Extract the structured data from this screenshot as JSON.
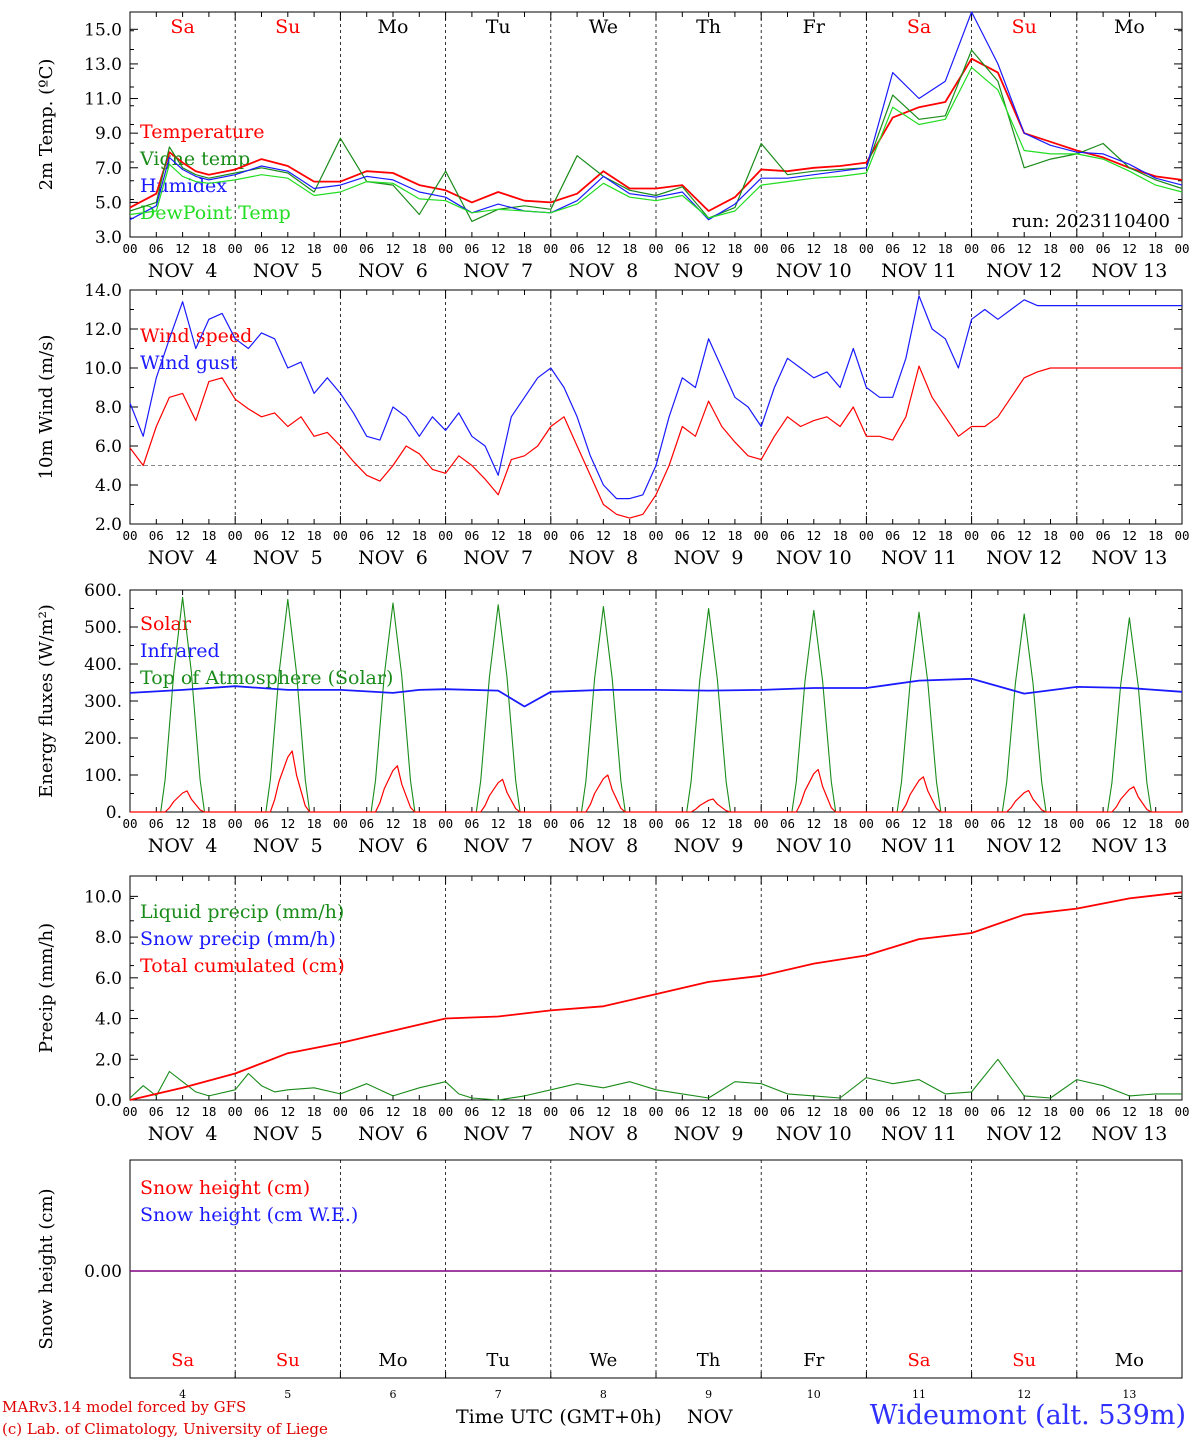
{
  "days": [
    "Sa",
    "Su",
    "Mo",
    "Tu",
    "We",
    "Th",
    "Fr",
    "Sa",
    "Su",
    "Mo"
  ],
  "weekend_flags": [
    true,
    true,
    false,
    false,
    false,
    false,
    false,
    true,
    true,
    false
  ],
  "date_labels": [
    "NOV  4",
    "NOV  5",
    "NOV  6",
    "NOV  7",
    "NOV  8",
    "NOV  9",
    "NOV 10",
    "NOV 11",
    "NOV 12",
    "NOV 13"
  ],
  "hour_ticks": [
    "00",
    "06",
    "12",
    "18"
  ],
  "hour_end": "00",
  "bottom_day_numbers": [
    "4",
    "5",
    "6",
    "7",
    "8",
    "9",
    "10",
    "11",
    "12",
    "13"
  ],
  "bottom_month": "NOV",
  "footer": {
    "model_line": "MARv3.14 model forced by GFS",
    "copyright_line": "(c) Lab. of Climatology, University of Liege",
    "time_label": "Time UTC (GMT+0h)",
    "station": "Wideumont (alt. 539m)"
  },
  "colors": {
    "red": "#ff0000",
    "green": "#1a8c1a",
    "blue": "#1a1aff",
    "lightgreen": "#22dd22",
    "purple": "#800080",
    "weekend": "#ff0000",
    "weekday": "#000000"
  },
  "chart_data": [
    {
      "type": "line",
      "id": "temperature",
      "ylabel": "2m Temp. (ºC)",
      "ylim": [
        3.0,
        16.0
      ],
      "yticks": [
        "3.0",
        "5.0",
        "7.0",
        "9.0",
        "11.0",
        "13.0",
        "15.0"
      ],
      "annotation": "run: 2023110400",
      "x_unit": "hours since NOV 4 00 UTC",
      "x": [
        0,
        6,
        9,
        12,
        15,
        18,
        24,
        30,
        36,
        42,
        48,
        54,
        60,
        66,
        72,
        78,
        84,
        90,
        96,
        102,
        108,
        114,
        120,
        126,
        132,
        138,
        144,
        150,
        156,
        162,
        168,
        174,
        180,
        186,
        192,
        198,
        204,
        210,
        216,
        222,
        228,
        234,
        240
      ],
      "series": [
        {
          "name": "Temperature",
          "color": "red",
          "values": [
            4.7,
            5.5,
            7.9,
            7.3,
            6.8,
            6.6,
            6.9,
            7.5,
            7.1,
            6.2,
            6.2,
            6.8,
            6.7,
            6.0,
            5.7,
            5.0,
            5.6,
            5.1,
            5.0,
            5.5,
            6.8,
            5.8,
            5.8,
            6.0,
            4.5,
            5.3,
            6.9,
            6.8,
            7.0,
            7.1,
            7.3,
            9.9,
            10.5,
            10.8,
            13.3,
            12.5,
            9.0,
            8.5,
            8.0,
            7.6,
            7.0,
            6.5,
            6.3
          ]
        },
        {
          "name": "Vigne temp",
          "color": "green",
          "values": [
            4.5,
            5.0,
            8.2,
            7.0,
            6.6,
            6.4,
            6.7,
            7.0,
            6.7,
            5.6,
            8.7,
            6.2,
            6.0,
            4.3,
            6.8,
            3.9,
            4.6,
            4.8,
            4.6,
            7.7,
            6.5,
            5.7,
            5.4,
            5.9,
            4.1,
            4.7,
            8.4,
            6.6,
            6.8,
            6.9,
            7.0,
            11.2,
            9.8,
            10.0,
            13.8,
            12.0,
            7.0,
            7.5,
            7.8,
            8.4,
            7.0,
            6.3,
            5.8
          ]
        },
        {
          "name": "Humidex",
          "color": "blue",
          "values": [
            4.0,
            4.8,
            7.6,
            6.9,
            6.5,
            6.3,
            6.6,
            7.1,
            6.8,
            5.8,
            6.0,
            6.5,
            6.3,
            5.6,
            5.3,
            4.4,
            4.9,
            4.5,
            4.4,
            5.1,
            6.5,
            5.5,
            5.3,
            5.6,
            4.0,
            4.9,
            6.4,
            6.4,
            6.6,
            6.8,
            7.0,
            12.5,
            11.0,
            12.0,
            16.0,
            13.0,
            9.0,
            8.3,
            7.9,
            7.8,
            7.2,
            6.4,
            6.0
          ]
        },
        {
          "name": "DewPoint Temp",
          "color": "lightgreen",
          "values": [
            4.3,
            4.5,
            7.2,
            6.5,
            6.2,
            6.1,
            6.3,
            6.6,
            6.4,
            5.4,
            5.6,
            6.2,
            6.1,
            5.2,
            5.1,
            4.4,
            4.6,
            4.5,
            4.4,
            4.9,
            6.1,
            5.3,
            5.1,
            5.4,
            4.1,
            4.5,
            6.0,
            6.2,
            6.4,
            6.5,
            6.7,
            10.5,
            9.5,
            9.8,
            12.8,
            11.5,
            8.0,
            7.8,
            7.8,
            7.5,
            6.8,
            6.0,
            5.6
          ]
        }
      ]
    },
    {
      "type": "line",
      "id": "wind",
      "ylabel": "10m Wind (m/s)",
      "ylim": [
        2.0,
        14.0
      ],
      "yticks": [
        "2.0",
        "4.0",
        "6.0",
        "8.0",
        "10.0",
        "12.0",
        "14.0"
      ],
      "reference_line": 5.0,
      "x_unit": "hours since NOV 4 00 UTC",
      "x": [
        0,
        3,
        6,
        9,
        12,
        15,
        18,
        21,
        24,
        27,
        30,
        33,
        36,
        39,
        42,
        45,
        48,
        51,
        54,
        57,
        60,
        63,
        66,
        69,
        72,
        75,
        78,
        81,
        84,
        87,
        90,
        93,
        96,
        99,
        102,
        105,
        108,
        111,
        114,
        117,
        120,
        123,
        126,
        129,
        132,
        135,
        138,
        141,
        144,
        147,
        150,
        153,
        156,
        159,
        162,
        165,
        168,
        171,
        174,
        177,
        180,
        183,
        186,
        189,
        192,
        195,
        198,
        201,
        204,
        207,
        210,
        213,
        216,
        219,
        222,
        225,
        228,
        231,
        234,
        237,
        240
      ],
      "series": [
        {
          "name": "Wind speed",
          "color": "red",
          "values": [
            5.9,
            5.0,
            7.0,
            8.5,
            8.7,
            7.3,
            9.3,
            9.5,
            8.4,
            7.9,
            7.5,
            7.7,
            7.0,
            7.5,
            6.5,
            6.7,
            6.0,
            5.2,
            4.5,
            4.2,
            5.0,
            6.0,
            5.6,
            4.8,
            4.6,
            5.5,
            5.0,
            4.3,
            3.5,
            5.3,
            5.5,
            6.0,
            7.0,
            7.5,
            6.0,
            4.5,
            3.0,
            2.5,
            2.3,
            2.5,
            3.5,
            5.0,
            7.0,
            6.5,
            8.3,
            7.0,
            6.2,
            5.5,
            5.3,
            6.5,
            7.5,
            7.0,
            7.3,
            7.5,
            7.0,
            8.0,
            6.5,
            6.5,
            6.3,
            7.5,
            10.1,
            8.5,
            7.5,
            6.5,
            7.0,
            7.0,
            7.5,
            8.5,
            9.5,
            9.8,
            10.0,
            10.0,
            10.0,
            10.0,
            10.0,
            10.0,
            10.0,
            10.0,
            10.0,
            10.0,
            10.0
          ]
        },
        {
          "name": "Wind gust",
          "color": "blue",
          "values": [
            8.2,
            6.5,
            9.5,
            11.5,
            13.4,
            11.0,
            12.5,
            12.8,
            11.5,
            11.0,
            11.8,
            11.5,
            10.0,
            10.3,
            8.7,
            9.5,
            8.7,
            7.7,
            6.5,
            6.3,
            8.0,
            7.5,
            6.5,
            7.5,
            6.8,
            7.7,
            6.5,
            6.0,
            4.5,
            7.5,
            8.5,
            9.5,
            10.0,
            9.0,
            7.5,
            5.5,
            4.0,
            3.3,
            3.3,
            3.5,
            5.0,
            7.5,
            9.5,
            9.0,
            11.5,
            10.0,
            8.5,
            8.0,
            7.0,
            9.0,
            10.5,
            10.0,
            9.5,
            9.8,
            9.0,
            11.0,
            9.0,
            8.5,
            8.5,
            10.5,
            13.7,
            12.0,
            11.5,
            10.0,
            12.5,
            13.0,
            12.5,
            13.0,
            13.5,
            13.2,
            13.2,
            13.2,
            13.2,
            13.2,
            13.2,
            13.2,
            13.2,
            13.2,
            13.2,
            13.2,
            13.2
          ]
        }
      ]
    },
    {
      "type": "line",
      "id": "energy",
      "ylabel": "Energy fluxes (W/m²)",
      "ylim": [
        0,
        600
      ],
      "yticks": [
        "0.",
        "100.",
        "200.",
        "300.",
        "400.",
        "500.",
        "600."
      ],
      "x_unit": "hours since NOV 4 00 UTC",
      "solar_peaks": [
        57,
        165,
        125,
        88,
        100,
        35,
        115,
        95,
        58,
        68
      ],
      "toa_peaks": [
        580,
        575,
        565,
        560,
        555,
        550,
        545,
        540,
        535,
        525
      ],
      "infrared": {
        "x": [
          0,
          12,
          24,
          36,
          48,
          60,
          66,
          72,
          84,
          90,
          96,
          108,
          120,
          132,
          144,
          156,
          168,
          180,
          192,
          204,
          216,
          228,
          240
        ],
        "values": [
          322,
          330,
          340,
          330,
          330,
          322,
          330,
          332,
          328,
          285,
          325,
          330,
          330,
          328,
          330,
          335,
          335,
          355,
          360,
          320,
          338,
          335,
          325
        ]
      },
      "series": [
        {
          "name": "Solar",
          "color": "red"
        },
        {
          "name": "Infrared",
          "color": "blue"
        },
        {
          "name": "Top of Atmosphere (Solar)",
          "color": "green"
        }
      ]
    },
    {
      "type": "line",
      "id": "precip",
      "ylabel": "Precip (mm/h)",
      "ylim": [
        0.0,
        11.0
      ],
      "yticks": [
        "0.0",
        "2.0",
        "4.0",
        "6.0",
        "8.0",
        "10.0"
      ],
      "x_unit": "hours since NOV 4 00 UTC",
      "liquid": {
        "x": [
          0,
          3,
          6,
          9,
          12,
          15,
          18,
          24,
          27,
          30,
          33,
          36,
          42,
          48,
          54,
          60,
          66,
          72,
          75,
          78,
          84,
          90,
          96,
          102,
          108,
          114,
          120,
          126,
          132,
          138,
          144,
          150,
          156,
          162,
          168,
          174,
          180,
          186,
          192,
          198,
          204,
          210,
          216,
          222,
          228,
          234,
          240
        ],
        "values": [
          0.1,
          0.7,
          0.2,
          1.4,
          0.9,
          0.4,
          0.2,
          0.5,
          1.3,
          0.7,
          0.4,
          0.5,
          0.6,
          0.3,
          0.8,
          0.2,
          0.6,
          0.9,
          0.3,
          0.1,
          0.0,
          0.2,
          0.5,
          0.8,
          0.6,
          0.9,
          0.5,
          0.3,
          0.1,
          0.9,
          0.8,
          0.3,
          0.2,
          0.1,
          1.1,
          0.8,
          1.0,
          0.3,
          0.4,
          2.0,
          0.2,
          0.1,
          1.0,
          0.7,
          0.2,
          0.3,
          0.3
        ]
      },
      "cumulated": {
        "x": [
          0,
          12,
          24,
          36,
          48,
          60,
          72,
          84,
          96,
          108,
          120,
          132,
          144,
          156,
          168,
          180,
          192,
          204,
          216,
          228,
          240
        ],
        "values": [
          0.0,
          0.6,
          1.3,
          2.3,
          2.8,
          3.4,
          4.0,
          4.1,
          4.4,
          4.6,
          5.2,
          5.8,
          6.1,
          6.7,
          7.1,
          7.9,
          8.2,
          9.1,
          9.4,
          9.9,
          10.2
        ]
      },
      "series": [
        {
          "name": "Liquid precip (mm/h)",
          "color": "green"
        },
        {
          "name": "Snow precip (mm/h)",
          "color": "blue"
        },
        {
          "name": "Total cumulated (cm)",
          "color": "red"
        }
      ]
    },
    {
      "type": "line",
      "id": "snow",
      "ylabel": "Snow height (cm)",
      "yticks": [
        "0.00"
      ],
      "values_constant": 0.0,
      "series": [
        {
          "name": "Snow height (cm)",
          "color": "red"
        },
        {
          "name": "Snow height (cm W.E.)",
          "color": "blue"
        }
      ]
    }
  ]
}
